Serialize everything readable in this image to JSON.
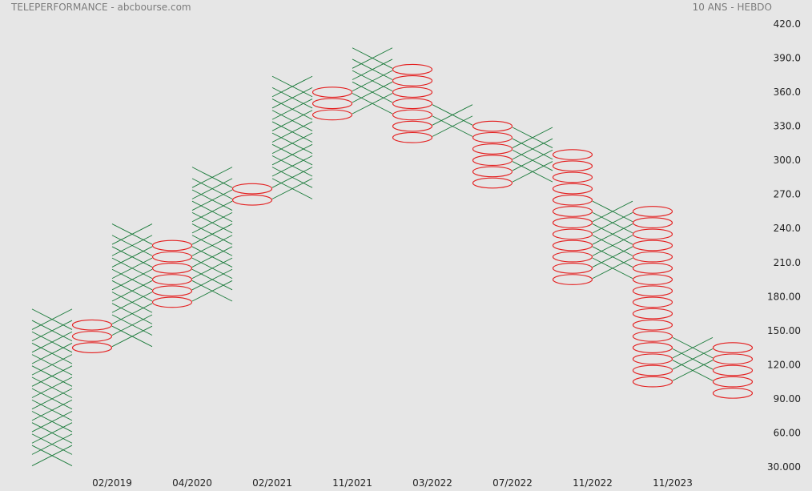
{
  "chart_data": {
    "type": "point-and-figure",
    "title": "TELEPERFORMANCE - abcbourse.com",
    "subtitle": "10 ANS - HEBDO",
    "box_size": 10,
    "ylim": [
      30,
      420
    ],
    "y_ticks": [
      "30.000",
      "60.00",
      "90.00",
      "120.00",
      "150.00",
      "180.00",
      "210.0",
      "240.0",
      "270.0",
      "300.0",
      "330.0",
      "360.0",
      "390.0",
      "420.0"
    ],
    "x_labels": [
      {
        "label": "02/2019",
        "column": 2
      },
      {
        "label": "04/2020",
        "column": 4
      },
      {
        "label": "02/2021",
        "column": 6
      },
      {
        "label": "11/2021",
        "column": 8
      },
      {
        "label": "03/2022",
        "column": 10
      },
      {
        "label": "07/2022",
        "column": 12
      },
      {
        "label": "11/2022",
        "column": 14
      },
      {
        "label": "11/2023",
        "column": 16
      }
    ],
    "columns": [
      {
        "type": "X",
        "low": 40,
        "high": 160
      },
      {
        "type": "O",
        "low": 135,
        "high": 155
      },
      {
        "type": "X",
        "low": 145,
        "high": 235
      },
      {
        "type": "O",
        "low": 175,
        "high": 225
      },
      {
        "type": "X",
        "low": 185,
        "high": 285
      },
      {
        "type": "O",
        "low": 265,
        "high": 275
      },
      {
        "type": "X",
        "low": 275,
        "high": 370
      },
      {
        "type": "O",
        "low": 340,
        "high": 360
      },
      {
        "type": "X",
        "low": 350,
        "high": 390
      },
      {
        "type": "O",
        "low": 320,
        "high": 380
      },
      {
        "type": "X",
        "low": 330,
        "high": 340
      },
      {
        "type": "O",
        "low": 280,
        "high": 330
      },
      {
        "type": "X",
        "low": 290,
        "high": 320
      },
      {
        "type": "O",
        "low": 195,
        "high": 310
      },
      {
        "type": "X",
        "low": 205,
        "high": 260
      },
      {
        "type": "O",
        "low": 105,
        "high": 255
      },
      {
        "type": "X",
        "low": 115,
        "high": 135
      },
      {
        "type": "O",
        "low": 95,
        "high": 135
      }
    ],
    "colors": {
      "x": "#1a7a3a",
      "o": "#e41e1e",
      "background": "#e6e6e6",
      "text": "#222222",
      "header": "#7c7c7c"
    }
  }
}
